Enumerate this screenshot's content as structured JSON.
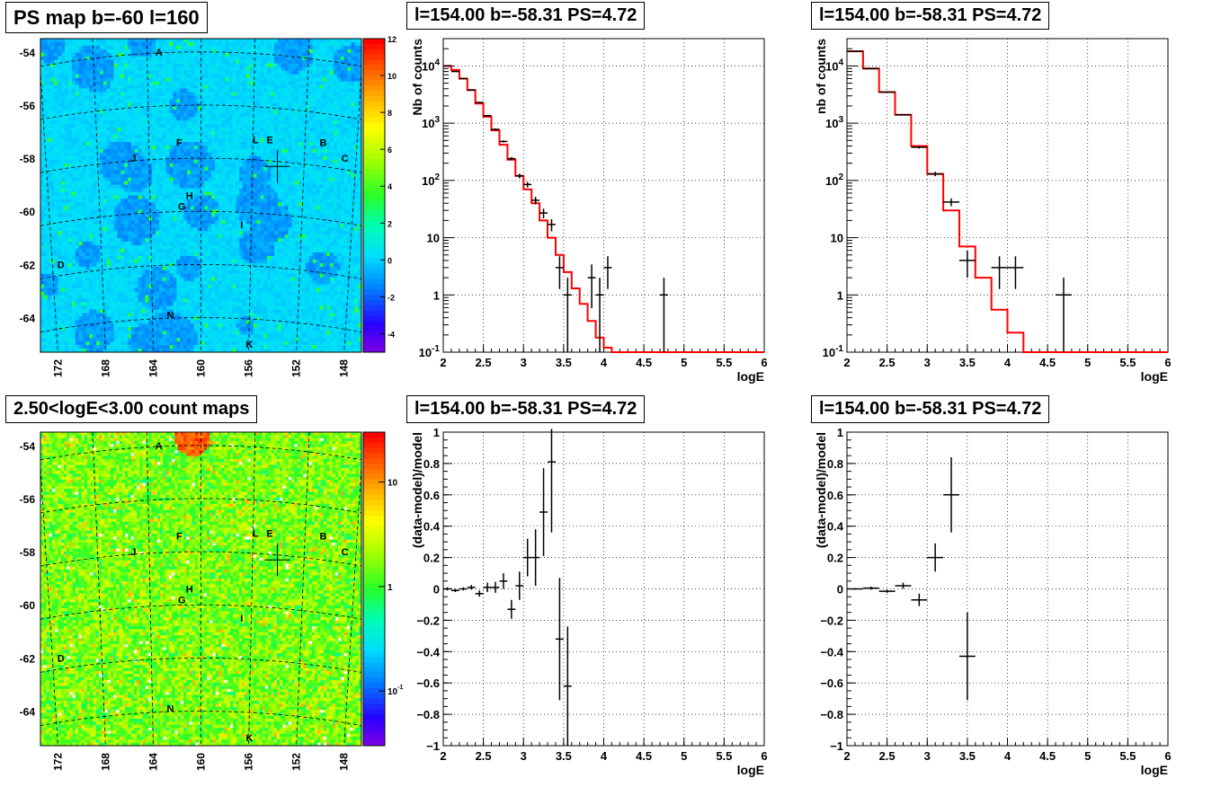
{
  "panels": [
    {
      "title": "PS map b=-60 l=160"
    },
    {
      "title": "l=154.00 b=-58.31 PS=4.72"
    },
    {
      "title": "l=154.00 b=-58.31 PS=4.72"
    },
    {
      "title": "2.50<logE<3.00 count maps"
    },
    {
      "title": "l=154.00 b=-58.31 PS=4.72"
    },
    {
      "title": "l=154.00 b=-58.31 PS=4.72"
    }
  ],
  "colors": {
    "model": "#ff0000",
    "data": "#000000",
    "grid": "#000000"
  },
  "chart_data": [
    {
      "type": "heatmap",
      "title": "PS map b=-60 l=160",
      "y_ticks": [
        "-54",
        "-56",
        "-58",
        "-60",
        "-62",
        "-64"
      ],
      "x_ticks": [
        "172",
        "168",
        "164",
        "160",
        "156",
        "152",
        "148"
      ],
      "colorbar": {
        "ticks": [
          "12",
          "10",
          "8",
          "6",
          "4",
          "2",
          "0",
          "-2",
          "-4"
        ],
        "range": [
          -5,
          12
        ],
        "scale": "linear"
      },
      "sources": [
        {
          "label": "A",
          "l": 163.3,
          "b": -54.0
        },
        {
          "label": "L",
          "l": 155.7,
          "b": -57.3
        },
        {
          "label": "E",
          "l": 154.6,
          "b": -57.3
        },
        {
          "label": "B",
          "l": 150.4,
          "b": -57.4
        },
        {
          "label": "F",
          "l": 161.7,
          "b": -57.4
        },
        {
          "label": "C",
          "l": 148.7,
          "b": -58.0
        },
        {
          "label": "J",
          "l": 165.3,
          "b": -58.0
        },
        {
          "label": "H",
          "l": 160.9,
          "b": -59.4
        },
        {
          "label": "G",
          "l": 161.5,
          "b": -59.8
        },
        {
          "label": "I",
          "l": 156.8,
          "b": -60.5
        },
        {
          "label": "D",
          "l": 171.0,
          "b": -62.0
        },
        {
          "label": "N",
          "l": 162.4,
          "b": -63.9
        },
        {
          "label": "K",
          "l": 156.2,
          "b": -65.0
        }
      ],
      "marker": {
        "l": 154.0,
        "b": -58.31
      }
    },
    {
      "type": "line",
      "title": "l=154.00 b=-58.31 PS=4.72",
      "xlabel": "logE",
      "ylabel": "Nb of counts",
      "xlim": [
        2,
        6
      ],
      "ylim": [
        0.1,
        30000
      ],
      "yscale": "log",
      "grid": true,
      "x_ticks": [
        "2",
        "2.5",
        "3",
        "3.5",
        "4",
        "4.5",
        "5",
        "5.5",
        "6"
      ],
      "y_ticks": [
        "10^-1",
        "1",
        "10",
        "10^2",
        "10^3",
        "10^4"
      ],
      "series": [
        {
          "kind": "step",
          "edges": [
            2.0,
            2.1,
            2.2,
            2.3,
            2.4,
            2.5,
            2.6,
            2.7,
            2.8,
            2.9,
            3.0,
            3.1,
            3.2,
            3.3,
            3.4,
            3.5,
            3.6,
            3.7,
            3.8,
            3.9,
            4.0,
            4.1,
            6.0
          ],
          "values": [
            10000,
            8500,
            6000,
            3800,
            2200,
            1300,
            750,
            420,
            230,
            120,
            70,
            40,
            20,
            10,
            5,
            2.5,
            1.3,
            0.7,
            0.35,
            0.18,
            0.12,
            0.1
          ]
        },
        {
          "kind": "points",
          "points": [
            {
              "x": 2.05,
              "y": 10000
            },
            {
              "x": 2.15,
              "y": 8000
            },
            {
              "x": 2.25,
              "y": 6000
            },
            {
              "x": 2.35,
              "y": 3800
            },
            {
              "x": 2.45,
              "y": 2300
            },
            {
              "x": 2.55,
              "y": 1350
            },
            {
              "x": 2.65,
              "y": 780
            },
            {
              "x": 2.75,
              "y": 480
            },
            {
              "x": 2.85,
              "y": 240
            },
            {
              "x": 2.95,
              "y": 120
            },
            {
              "x": 3.05,
              "y": 85
            },
            {
              "x": 3.15,
              "y": 45
            },
            {
              "x": 3.25,
              "y": 27
            },
            {
              "x": 3.35,
              "y": 17
            },
            {
              "x": 3.45,
              "y": 3
            },
            {
              "x": 3.55,
              "y": 1
            },
            {
              "x": 3.85,
              "y": 2
            },
            {
              "x": 3.95,
              "y": 1
            },
            {
              "x": 4.05,
              "y": 3
            },
            {
              "x": 4.75,
              "y": 1
            }
          ]
        }
      ]
    },
    {
      "type": "line",
      "title": "l=154.00 b=-58.31 PS=4.72",
      "xlabel": "logE",
      "ylabel": "nb of counts",
      "xlim": [
        2,
        6
      ],
      "ylim": [
        0.1,
        30000
      ],
      "yscale": "log",
      "grid": true,
      "x_ticks": [
        "2",
        "2.5",
        "3",
        "3.5",
        "4",
        "4.5",
        "5",
        "5.5",
        "6"
      ],
      "y_ticks": [
        "10^-1",
        "1",
        "10",
        "10^2",
        "10^3",
        "10^4"
      ],
      "series": [
        {
          "kind": "step",
          "edges": [
            2.0,
            2.2,
            2.4,
            2.6,
            2.8,
            3.0,
            3.2,
            3.4,
            3.6,
            3.8,
            4.0,
            4.2,
            4.4,
            6.0
          ],
          "values": [
            18000,
            9000,
            3500,
            1400,
            400,
            130,
            30,
            7,
            2,
            0.55,
            0.22,
            0.1,
            0.1
          ]
        },
        {
          "kind": "points",
          "points": [
            {
              "x": 2.1,
              "y": 18000
            },
            {
              "x": 2.3,
              "y": 9000
            },
            {
              "x": 2.5,
              "y": 3500
            },
            {
              "x": 2.7,
              "y": 1400
            },
            {
              "x": 2.9,
              "y": 380
            },
            {
              "x": 3.1,
              "y": 130
            },
            {
              "x": 3.3,
              "y": 42
            },
            {
              "x": 3.5,
              "y": 4
            },
            {
              "x": 3.9,
              "y": 3
            },
            {
              "x": 4.1,
              "y": 3
            },
            {
              "x": 4.7,
              "y": 1
            }
          ]
        }
      ]
    },
    {
      "type": "heatmap",
      "title": "2.50<logE<3.00 count maps",
      "y_ticks": [
        "-54",
        "-56",
        "-58",
        "-60",
        "-62",
        "-64"
      ],
      "x_ticks": [
        "172",
        "168",
        "164",
        "160",
        "156",
        "152",
        "148"
      ],
      "colorbar": {
        "ticks": [
          "10",
          "1",
          "10^-1"
        ],
        "range": [
          0.03,
          30
        ],
        "scale": "log"
      },
      "sources": [
        {
          "label": "A",
          "l": 163.3,
          "b": -54.0
        },
        {
          "label": "L",
          "l": 155.7,
          "b": -57.3
        },
        {
          "label": "E",
          "l": 154.6,
          "b": -57.3
        },
        {
          "label": "B",
          "l": 150.4,
          "b": -57.4
        },
        {
          "label": "F",
          "l": 161.7,
          "b": -57.4
        },
        {
          "label": "C",
          "l": 148.7,
          "b": -58.0
        },
        {
          "label": "J",
          "l": 165.3,
          "b": -58.0
        },
        {
          "label": "H",
          "l": 160.9,
          "b": -59.4
        },
        {
          "label": "G",
          "l": 161.5,
          "b": -59.8
        },
        {
          "label": "I",
          "l": 156.8,
          "b": -60.5
        },
        {
          "label": "D",
          "l": 171.0,
          "b": -62.0
        },
        {
          "label": "N",
          "l": 162.4,
          "b": -63.9
        },
        {
          "label": "K",
          "l": 156.2,
          "b": -65.0
        }
      ],
      "marker": {
        "l": 154.0,
        "b": -58.31
      }
    },
    {
      "type": "scatter",
      "title": "l=154.00 b=-58.31 PS=4.72",
      "xlabel": "logE",
      "ylabel": "(data-model)/model",
      "xlim": [
        2,
        6
      ],
      "ylim": [
        -1,
        1
      ],
      "grid": true,
      "x_ticks": [
        "2",
        "2.5",
        "3",
        "3.5",
        "4",
        "4.5",
        "5",
        "5.5",
        "6"
      ],
      "y_ticks": [
        "−1",
        "−0.8",
        "−0.6",
        "−0.4",
        "−0.2",
        "0",
        "0.2",
        "0.4",
        "0.6",
        "0.8",
        "1"
      ],
      "points": [
        {
          "x": 2.05,
          "y": 0.0,
          "err": 0.01
        },
        {
          "x": 2.15,
          "y": -0.01,
          "err": 0.01
        },
        {
          "x": 2.25,
          "y": 0.0,
          "err": 0.01
        },
        {
          "x": 2.35,
          "y": 0.01,
          "err": 0.015
        },
        {
          "x": 2.45,
          "y": -0.03,
          "err": 0.02
        },
        {
          "x": 2.55,
          "y": 0.01,
          "err": 0.03
        },
        {
          "x": 2.65,
          "y": 0.01,
          "err": 0.035
        },
        {
          "x": 2.75,
          "y": 0.05,
          "err": 0.05
        },
        {
          "x": 2.85,
          "y": -0.13,
          "err": 0.06
        },
        {
          "x": 2.95,
          "y": 0.02,
          "err": 0.09
        },
        {
          "x": 3.05,
          "y": 0.2,
          "err": 0.12
        },
        {
          "x": 3.15,
          "y": 0.2,
          "err": 0.18
        },
        {
          "x": 3.25,
          "y": 0.49,
          "err": 0.28
        },
        {
          "x": 3.35,
          "y": 0.81,
          "err": 0.45
        },
        {
          "x": 3.45,
          "y": -0.32,
          "err": 0.39
        },
        {
          "x": 3.55,
          "y": -0.62,
          "err": 0.38
        }
      ]
    },
    {
      "type": "scatter",
      "title": "l=154.00 b=-58.31 PS=4.72",
      "xlabel": "logE",
      "ylabel": "(data-model)/model",
      "xlim": [
        2,
        6
      ],
      "ylim": [
        -1,
        1
      ],
      "grid": true,
      "x_ticks": [
        "2",
        "2.5",
        "3",
        "3.5",
        "4",
        "4.5",
        "5",
        "5.5",
        "6"
      ],
      "y_ticks": [
        "−1",
        "−0.8",
        "−0.6",
        "−0.4",
        "−0.2",
        "0",
        "0.2",
        "0.4",
        "0.6",
        "0.8",
        "1"
      ],
      "points": [
        {
          "x": 2.1,
          "y": 0.0,
          "err": 0.005
        },
        {
          "x": 2.3,
          "y": 0.005,
          "err": 0.01
        },
        {
          "x": 2.5,
          "y": -0.015,
          "err": 0.01
        },
        {
          "x": 2.7,
          "y": 0.02,
          "err": 0.02
        },
        {
          "x": 2.9,
          "y": -0.07,
          "err": 0.04
        },
        {
          "x": 3.1,
          "y": 0.2,
          "err": 0.09
        },
        {
          "x": 3.3,
          "y": 0.6,
          "err": 0.24
        },
        {
          "x": 3.5,
          "y": -0.43,
          "err": 0.28
        }
      ]
    }
  ]
}
